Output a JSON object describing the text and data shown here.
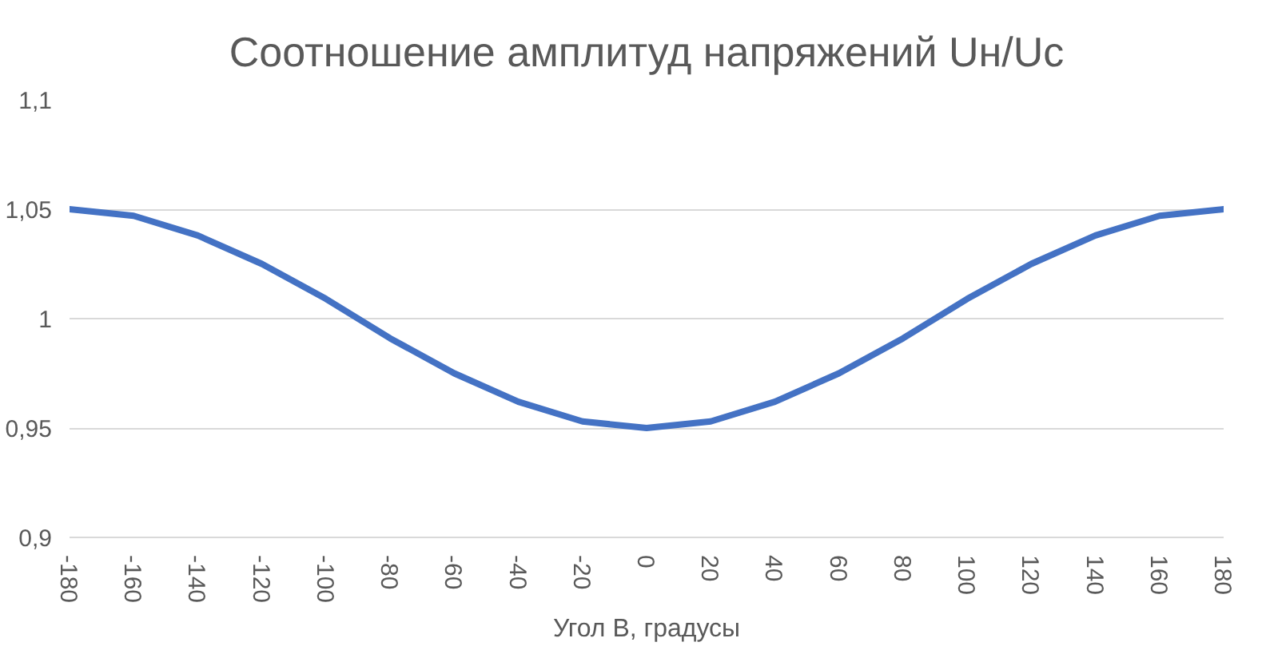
{
  "chart_data": {
    "type": "line",
    "title": "Соотношение амплитуд напряжений Uн/Uc",
    "xlabel": "Угол В, градусы",
    "x": [
      -180,
      -160,
      -140,
      -120,
      -100,
      -80,
      -60,
      -40,
      -20,
      0,
      20,
      40,
      60,
      80,
      100,
      120,
      140,
      160,
      180
    ],
    "series": [
      {
        "color": "#4472c4",
        "values": [
          1.05,
          1.047,
          1.038,
          1.025,
          1.009,
          0.991,
          0.975,
          0.962,
          0.953,
          0.95,
          0.953,
          0.962,
          0.975,
          0.991,
          1.009,
          1.025,
          1.038,
          1.047,
          1.05
        ]
      }
    ],
    "xlim": [
      -180,
      180
    ],
    "xticks": [
      -180,
      -160,
      -140,
      -120,
      -100,
      -80,
      -60,
      -40,
      -20,
      0,
      20,
      40,
      60,
      80,
      100,
      120,
      140,
      160,
      180
    ],
    "ylim": [
      0.9,
      1.1
    ],
    "yticks": [
      {
        "value": 0.9,
        "label": "0,9"
      },
      {
        "value": 0.95,
        "label": "0,95"
      },
      {
        "value": 1,
        "label": "1"
      },
      {
        "value": 1.05,
        "label": "1,05"
      },
      {
        "value": 1.1,
        "label": "1,1"
      }
    ],
    "grid": "y",
    "marker": "none",
    "line_style": "solid"
  }
}
